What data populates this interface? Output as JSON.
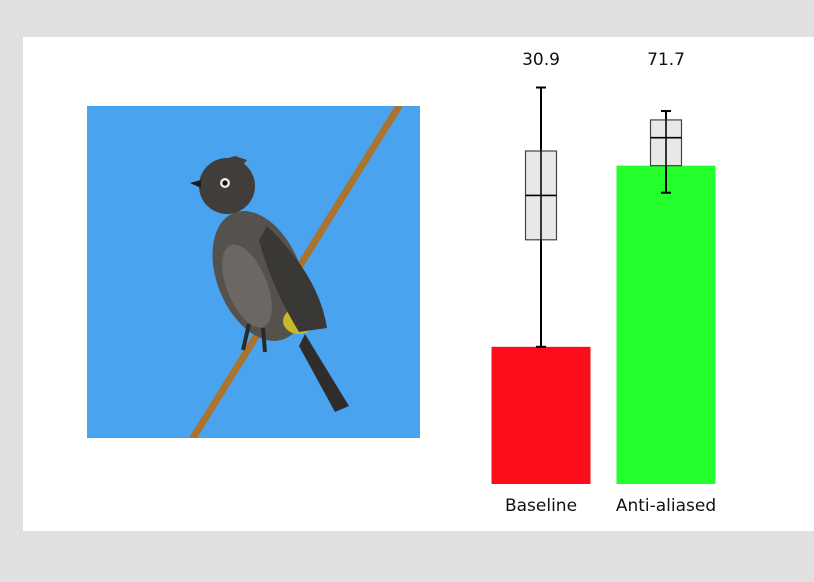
{
  "colors": {
    "background": "#e0e0e0",
    "panel": "#ffffff",
    "sky": "#4aa3ee",
    "branch": "#a8742f"
  },
  "photo": {
    "subject_icon": "bird-on-branch-icon"
  },
  "chart_data": {
    "type": "bar",
    "categories": [
      "Baseline",
      "Anti-aliased"
    ],
    "values": [
      30.9,
      71.7
    ],
    "value_labels": [
      "30.9",
      "71.7"
    ],
    "bar_colors": [
      "#fc0d1b",
      "#22ff2a"
    ],
    "error_bars": [
      {
        "low": 30.9,
        "high": 89.3,
        "q1": 55.0,
        "median": 65.0,
        "q3": 75.0
      },
      {
        "low": 65.6,
        "high": 84.0,
        "q1": 71.7,
        "median": 78.0,
        "q3": 82.0
      }
    ],
    "title": "",
    "xlabel": "",
    "ylabel": "",
    "ylim": [
      0,
      100
    ],
    "grid": false
  }
}
